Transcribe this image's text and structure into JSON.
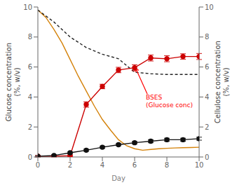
{
  "chart_data": {
    "type": "line",
    "xlabel": "Day",
    "ylabel": "Glucose concentration\n(%, w/v)",
    "y2label": "Cellulose concentration\n(%, w/v)",
    "xlim": [
      0,
      10
    ],
    "xticks": [
      0,
      2,
      4,
      6,
      8,
      10
    ],
    "ylim": [
      0,
      10
    ],
    "yticks": [
      0,
      2,
      4,
      6,
      8,
      10
    ],
    "y2lim": [
      0,
      10
    ],
    "y2ticks": [
      0,
      2,
      4,
      6,
      8,
      10
    ],
    "grid": false,
    "series": [
      {
        "x": [
          0,
          0.5,
          1,
          1.5,
          2,
          2.5,
          3,
          3.5,
          4,
          4.5,
          5,
          5.5,
          6,
          6.5,
          7,
          7.5,
          8,
          8.5,
          9,
          9.5,
          10
        ],
        "values": [
          9.8,
          9.3,
          8.5,
          7.6,
          6.5,
          5.4,
          4.4,
          3.4,
          2.5,
          1.8,
          1.15,
          0.75,
          0.55,
          0.45,
          0.5,
          0.55,
          0.58,
          0.6,
          0.62,
          0.63,
          0.65
        ],
        "color": "#d4820a",
        "line_style": "solid",
        "marker": "none",
        "axis": "y2"
      },
      {
        "x": [
          0,
          1,
          2,
          3,
          4,
          5,
          6,
          7,
          8,
          9,
          10
        ],
        "values": [
          9.8,
          9.0,
          8.0,
          7.3,
          6.85,
          6.55,
          5.65,
          5.55,
          5.5,
          5.5,
          5.5
        ],
        "color": "#222222",
        "line_style": "dashed",
        "marker": "none",
        "axis": "y2"
      },
      {
        "x": [
          0,
          1,
          2,
          3,
          4,
          5,
          6,
          7,
          8,
          9,
          10
        ],
        "values": [
          0.05,
          0.05,
          0.08,
          3.5,
          4.7,
          5.8,
          5.95,
          6.6,
          6.55,
          6.7,
          6.7
        ],
        "error": [
          0.05,
          0.05,
          0.05,
          0.18,
          0.15,
          0.18,
          0.2,
          0.2,
          0.2,
          0.18,
          0.2
        ],
        "color": "#cc0000",
        "line_style": "solid",
        "marker": "circle"
      },
      {
        "x": [
          0,
          1,
          2,
          3,
          4,
          5,
          6,
          7,
          8,
          9,
          10
        ],
        "values": [
          0.05,
          0.1,
          0.28,
          0.45,
          0.65,
          0.82,
          0.95,
          1.05,
          1.15,
          1.15,
          1.22
        ],
        "error": [
          0.04,
          0.05,
          0.06,
          0.07,
          0.07,
          0.07,
          0.08,
          0.1,
          0.1,
          0.1,
          0.1
        ],
        "color": "#111111",
        "line_style": "solid",
        "marker": "circle"
      }
    ],
    "annotations": [
      {
        "text": "BSES\n(Glucose conc)",
        "x": 6.05,
        "y": 5.95,
        "text_x": 6.7,
        "text_y": 4.1,
        "color": "red"
      }
    ]
  }
}
